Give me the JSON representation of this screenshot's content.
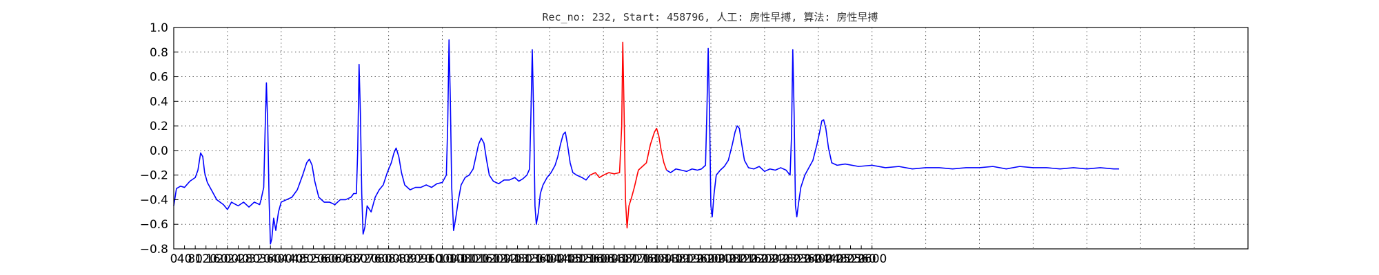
{
  "chart_data": {
    "type": "line",
    "title": "Rec_no: 232, Start: 458796, 人工: 房性早搏, 算法: 房性早搏",
    "xlabel": "",
    "ylabel": "",
    "xlim": [
      0,
      4000
    ],
    "ylim": [
      -0.8,
      1.0
    ],
    "grid": true,
    "yticks": [
      1.0,
      0.8,
      0.6,
      0.4,
      0.2,
      0.0,
      -0.2,
      -0.4,
      -0.6,
      -0.8
    ],
    "ytick_labels": [
      "1.0",
      "0.8",
      "0.6",
      "0.4",
      "0.2",
      "0.0",
      "−0.2",
      "−0.4",
      "−0.6",
      "−0.8"
    ],
    "xtick_labels": [
      "0",
      "40",
      "80",
      "120",
      "160",
      "200",
      "240",
      "280",
      "320",
      "360",
      "400",
      "440",
      "480",
      "520",
      "560",
      "600",
      "640",
      "680",
      "720",
      "760",
      "800",
      "840",
      "880",
      "920",
      "960",
      "1000",
      "1040",
      "1080",
      "1120",
      "1160",
      "1200",
      "1240",
      "1280",
      "1320",
      "1360",
      "1400",
      "1440",
      "1480",
      "1520",
      "1560",
      "1600",
      "1640",
      "1680",
      "1720",
      "1760",
      "1800",
      "1840",
      "1880",
      "1920",
      "1960",
      "2000",
      "2040",
      "2080",
      "2120",
      "2160",
      "2200",
      "2240",
      "2280",
      "2320",
      "2360",
      "2400",
      "2440",
      "2480",
      "2520",
      "2560",
      "2600"
    ],
    "vgrid_step": 200,
    "series": [
      {
        "color": "#0000ff",
        "points": [
          [
            0,
            -0.45
          ],
          [
            10,
            -0.31
          ],
          [
            25,
            -0.29
          ],
          [
            40,
            -0.3
          ],
          [
            60,
            -0.25
          ],
          [
            80,
            -0.22
          ],
          [
            90,
            -0.16
          ],
          [
            100,
            -0.02
          ],
          [
            108,
            -0.05
          ],
          [
            115,
            -0.18
          ],
          [
            125,
            -0.26
          ],
          [
            140,
            -0.32
          ],
          [
            160,
            -0.4
          ],
          [
            185,
            -0.44
          ],
          [
            200,
            -0.48
          ],
          [
            215,
            -0.42
          ],
          [
            240,
            -0.45
          ],
          [
            260,
            -0.42
          ],
          [
            280,
            -0.46
          ],
          [
            300,
            -0.42
          ],
          [
            320,
            -0.44
          ],
          [
            300,
            -0.42
          ],
          [
            320,
            -0.44
          ],
          [
            325,
            -0.4
          ],
          [
            335,
            -0.3
          ],
          [
            340,
            0.15
          ],
          [
            345,
            0.55
          ],
          [
            350,
            0.2
          ],
          [
            355,
            -0.4
          ],
          [
            360,
            -0.76
          ],
          [
            365,
            -0.72
          ],
          [
            372,
            -0.55
          ],
          [
            380,
            -0.65
          ],
          [
            390,
            -0.5
          ],
          [
            400,
            -0.42
          ],
          [
            420,
            -0.4
          ],
          [
            440,
            -0.38
          ],
          [
            460,
            -0.32
          ],
          [
            480,
            -0.2
          ],
          [
            495,
            -0.1
          ],
          [
            505,
            -0.07
          ],
          [
            515,
            -0.12
          ],
          [
            525,
            -0.25
          ],
          [
            540,
            -0.38
          ],
          [
            560,
            -0.42
          ],
          [
            580,
            -0.42
          ],
          [
            600,
            -0.44
          ],
          [
            620,
            -0.4
          ],
          [
            640,
            -0.4
          ],
          [
            660,
            -0.38
          ],
          [
            670,
            -0.35
          ],
          [
            680,
            -0.35
          ],
          [
            685,
            0.0
          ],
          [
            690,
            0.7
          ],
          [
            695,
            0.3
          ],
          [
            700,
            -0.35
          ],
          [
            705,
            -0.68
          ],
          [
            712,
            -0.62
          ],
          [
            720,
            -0.45
          ],
          [
            735,
            -0.5
          ],
          [
            750,
            -0.38
          ],
          [
            765,
            -0.32
          ],
          [
            780,
            -0.28
          ],
          [
            795,
            -0.18
          ],
          [
            810,
            -0.1
          ],
          [
            820,
            -0.02
          ],
          [
            828,
            0.02
          ],
          [
            838,
            -0.05
          ],
          [
            848,
            -0.18
          ],
          [
            860,
            -0.28
          ],
          [
            880,
            -0.32
          ],
          [
            900,
            -0.3
          ],
          [
            920,
            -0.3
          ],
          [
            940,
            -0.28
          ],
          [
            960,
            -0.3
          ],
          [
            980,
            -0.27
          ],
          [
            1000,
            -0.26
          ],
          [
            1015,
            -0.2
          ],
          [
            1020,
            0.2
          ],
          [
            1025,
            0.9
          ],
          [
            1030,
            0.4
          ],
          [
            1035,
            -0.3
          ],
          [
            1042,
            -0.65
          ],
          [
            1050,
            -0.55
          ],
          [
            1060,
            -0.4
          ],
          [
            1070,
            -0.28
          ],
          [
            1085,
            -0.22
          ],
          [
            1100,
            -0.2
          ],
          [
            1115,
            -0.15
          ],
          [
            1125,
            -0.05
          ],
          [
            1135,
            0.05
          ],
          [
            1145,
            0.1
          ],
          [
            1155,
            0.06
          ],
          [
            1165,
            -0.08
          ],
          [
            1175,
            -0.2
          ],
          [
            1190,
            -0.25
          ],
          [
            1210,
            -0.27
          ],
          [
            1230,
            -0.24
          ],
          [
            1250,
            -0.24
          ],
          [
            1270,
            -0.22
          ],
          [
            1285,
            -0.25
          ],
          [
            1300,
            -0.23
          ],
          [
            1315,
            -0.2
          ],
          [
            1325,
            -0.15
          ],
          [
            1330,
            0.3
          ],
          [
            1335,
            0.82
          ],
          [
            1340,
            0.3
          ],
          [
            1345,
            -0.45
          ],
          [
            1350,
            -0.6
          ],
          [
            1358,
            -0.5
          ],
          [
            1365,
            -0.35
          ],
          [
            1375,
            -0.28
          ],
          [
            1390,
            -0.22
          ],
          [
            1405,
            -0.18
          ],
          [
            1420,
            -0.12
          ],
          [
            1430,
            -0.05
          ],
          [
            1440,
            0.05
          ],
          [
            1450,
            0.13
          ],
          [
            1458,
            0.15
          ],
          [
            1466,
            0.05
          ],
          [
            1476,
            -0.1
          ],
          [
            1486,
            -0.18
          ],
          [
            1500,
            -0.2
          ],
          [
            1520,
            -0.22
          ],
          [
            1535,
            -0.24
          ],
          [
            1550,
            -0.2
          ]
        ]
      },
      {
        "color": "#ff0000",
        "points": [
          [
            1550,
            -0.2
          ],
          [
            1570,
            -0.18
          ],
          [
            1585,
            -0.22
          ],
          [
            1600,
            -0.2
          ],
          [
            1620,
            -0.18
          ],
          [
            1640,
            -0.19
          ],
          [
            1660,
            -0.18
          ],
          [
            1668,
            0.2
          ],
          [
            1672,
            0.88
          ],
          [
            1677,
            0.3
          ],
          [
            1682,
            -0.4
          ],
          [
            1688,
            -0.63
          ],
          [
            1695,
            -0.45
          ],
          [
            1705,
            -0.38
          ],
          [
            1715,
            -0.3
          ],
          [
            1730,
            -0.16
          ],
          [
            1745,
            -0.13
          ],
          [
            1760,
            -0.1
          ],
          [
            1775,
            0.05
          ],
          [
            1790,
            0.15
          ],
          [
            1798,
            0.18
          ],
          [
            1806,
            0.12
          ],
          [
            1815,
            0.0
          ],
          [
            1825,
            -0.1
          ],
          [
            1835,
            -0.16
          ]
        ]
      },
      {
        "color": "#0000ff",
        "points": [
          [
            1835,
            -0.16
          ],
          [
            1850,
            -0.18
          ],
          [
            1870,
            -0.15
          ],
          [
            1890,
            -0.16
          ],
          [
            1910,
            -0.17
          ],
          [
            1930,
            -0.15
          ],
          [
            1950,
            -0.16
          ],
          [
            1965,
            -0.15
          ],
          [
            1980,
            -0.12
          ],
          [
            1985,
            0.3
          ],
          [
            1990,
            0.83
          ],
          [
            1995,
            0.3
          ],
          [
            2000,
            -0.45
          ],
          [
            2005,
            -0.54
          ],
          [
            2012,
            -0.35
          ],
          [
            2020,
            -0.2
          ],
          [
            2035,
            -0.16
          ],
          [
            2050,
            -0.13
          ],
          [
            2065,
            -0.08
          ],
          [
            2080,
            0.05
          ],
          [
            2090,
            0.15
          ],
          [
            2098,
            0.2
          ],
          [
            2106,
            0.18
          ],
          [
            2115,
            0.05
          ],
          [
            2125,
            -0.08
          ],
          [
            2140,
            -0.14
          ],
          [
            2160,
            -0.15
          ],
          [
            2180,
            -0.13
          ],
          [
            2200,
            -0.17
          ],
          [
            2220,
            -0.15
          ],
          [
            2240,
            -0.16
          ],
          [
            2260,
            -0.14
          ],
          [
            2280,
            -0.16
          ],
          [
            2295,
            -0.2
          ],
          [
            2300,
            0.1
          ],
          [
            2305,
            0.82
          ],
          [
            2310,
            0.3
          ],
          [
            2315,
            -0.45
          ],
          [
            2320,
            -0.54
          ],
          [
            2327,
            -0.42
          ],
          [
            2335,
            -0.3
          ],
          [
            2350,
            -0.2
          ],
          [
            2365,
            -0.14
          ],
          [
            2380,
            -0.08
          ],
          [
            2395,
            0.05
          ],
          [
            2405,
            0.15
          ],
          [
            2413,
            0.24
          ],
          [
            2420,
            0.25
          ],
          [
            2428,
            0.18
          ],
          [
            2438,
            0.02
          ],
          [
            2450,
            -0.1
          ],
          [
            2470,
            -0.12
          ],
          [
            2500,
            -0.11
          ],
          [
            2550,
            -0.13
          ],
          [
            2600,
            -0.12
          ],
          [
            2650,
            -0.14
          ],
          [
            2700,
            -0.13
          ],
          [
            2750,
            -0.15
          ],
          [
            2800,
            -0.14
          ],
          [
            2850,
            -0.14
          ],
          [
            2900,
            -0.15
          ],
          [
            2950,
            -0.14
          ],
          [
            3000,
            -0.14
          ],
          [
            3050,
            -0.13
          ],
          [
            3100,
            -0.15
          ],
          [
            3150,
            -0.13
          ],
          [
            3200,
            -0.14
          ],
          [
            3250,
            -0.14
          ],
          [
            3300,
            -0.15
          ],
          [
            3350,
            -0.14
          ],
          [
            3400,
            -0.15
          ],
          [
            3450,
            -0.14
          ],
          [
            3500,
            -0.15
          ],
          [
            3520,
            -0.15
          ]
        ]
      }
    ]
  }
}
